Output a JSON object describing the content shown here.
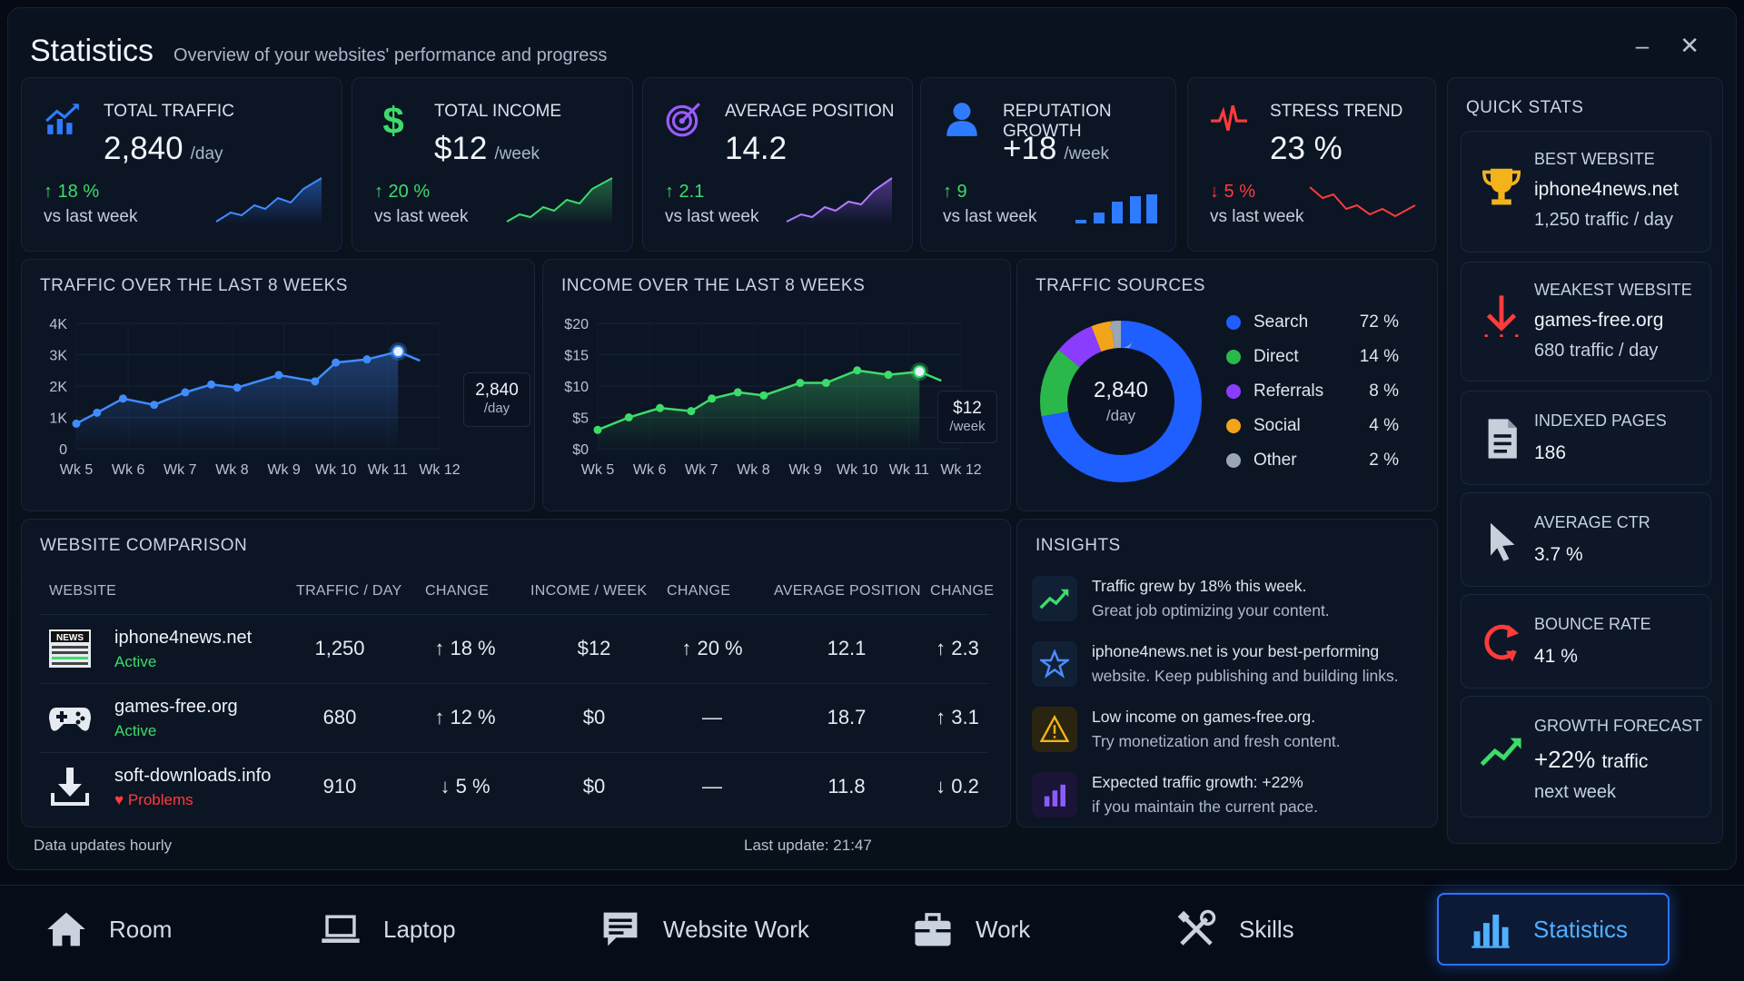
{
  "header": {
    "title": "Statistics",
    "subtitle": "Overview of your websites' performance and progress",
    "minimize": "–",
    "close": "✕"
  },
  "kpis": [
    {
      "label": "TOTAL TRAFFIC",
      "value": "2,840",
      "unit": "/day",
      "delta": "↑ 18 %",
      "trend": "up",
      "vs": "vs last week",
      "icon": "trending-chart-icon",
      "color": "#2f7bff"
    },
    {
      "label": "TOTAL INCOME",
      "value": "$12",
      "unit": "/week",
      "delta": "↑ 20 %",
      "trend": "up",
      "vs": "vs last week",
      "icon": "dollar-icon",
      "color": "#3ddc6a"
    },
    {
      "label": "AVERAGE POSITION",
      "value": "14.2",
      "unit": "",
      "delta": "↑ 2.1",
      "trend": "up",
      "vs": "vs last week",
      "icon": "target-icon",
      "color": "#9b5cff"
    },
    {
      "label": "REPUTATION GROWTH",
      "value": "+18",
      "unit": "/week",
      "delta": "↑ 9",
      "trend": "up",
      "vs": "vs last week",
      "icon": "user-icon",
      "color": "#2f7bff"
    },
    {
      "label": "STRESS TREND",
      "value": "23 %",
      "unit": "",
      "delta": "↓ 5 %",
      "trend": "down",
      "vs": "vs last week",
      "icon": "heartbeat-icon",
      "color": "#ff3b3b"
    }
  ],
  "traffic_chart": {
    "title": "TRAFFIC OVER THE LAST 8 WEEKS",
    "tooltip_value": "2,840",
    "tooltip_unit": "/day",
    "y_ticks": [
      "4K",
      "3K",
      "2K",
      "1K",
      "0"
    ],
    "x_ticks": [
      "Wk 5",
      "Wk 6",
      "Wk 7",
      "Wk 8",
      "Wk 9",
      "Wk 10",
      "Wk 11",
      "Wk 12"
    ]
  },
  "income_chart": {
    "title": "INCOME OVER THE LAST 8 WEEKS",
    "tooltip_value": "$12",
    "tooltip_unit": "/week",
    "y_ticks": [
      "$20",
      "$15",
      "$10",
      "$5",
      "$0"
    ],
    "x_ticks": [
      "Wk 5",
      "Wk 6",
      "Wk 7",
      "Wk 8",
      "Wk 9",
      "Wk 10",
      "Wk 11",
      "Wk 12"
    ]
  },
  "chart_data": [
    {
      "type": "line",
      "title": "TRAFFIC OVER THE LAST 8 WEEKS",
      "x": [
        5.0,
        5.4,
        5.9,
        6.5,
        7.1,
        7.6,
        8.1,
        8.9,
        9.6,
        10.0,
        10.6,
        11.2
      ],
      "values": [
        800,
        1150,
        1600,
        1400,
        1800,
        2050,
        1950,
        2350,
        2150,
        2750,
        2850,
        3100
      ],
      "ylim": [
        0,
        4000
      ],
      "color": "#3f8cff"
    },
    {
      "type": "line",
      "title": "INCOME OVER THE LAST 8 WEEKS",
      "x": [
        5.0,
        5.6,
        6.2,
        6.8,
        7.2,
        7.7,
        8.2,
        8.9,
        9.4,
        10.0,
        10.6,
        11.2
      ],
      "values": [
        3,
        5,
        6.5,
        6,
        8,
        9,
        8.5,
        10.5,
        10.5,
        12.5,
        11.8,
        12.3
      ],
      "ylim": [
        0,
        20
      ],
      "color": "#3ddc6a"
    },
    {
      "type": "pie",
      "title": "TRAFFIC SOURCES",
      "categories": [
        "Search",
        "Direct",
        "Referrals",
        "Social",
        "Other"
      ],
      "values": [
        72,
        14,
        8,
        4,
        2
      ],
      "colors": [
        "#1f5eff",
        "#2bb84a",
        "#8a3cff",
        "#f2a41b",
        "#9aa5b6"
      ]
    }
  ],
  "traffic_sources": {
    "title": "TRAFFIC SOURCES",
    "center_value": "2,840",
    "center_unit": "/day",
    "items": [
      {
        "name": "Search",
        "pct": "72 %",
        "color": "#1f5eff"
      },
      {
        "name": "Direct",
        "pct": "14 %",
        "color": "#2bb84a"
      },
      {
        "name": "Referrals",
        "pct": "8 %",
        "color": "#8a3cff"
      },
      {
        "name": "Social",
        "pct": "4 %",
        "color": "#f2a41b"
      },
      {
        "name": "Other",
        "pct": "2 %",
        "color": "#9aa5b6"
      }
    ]
  },
  "comparison": {
    "title": "WEBSITE COMPARISON",
    "columns": [
      "WEBSITE",
      "TRAFFIC / DAY",
      "CHANGE",
      "INCOME / WEEK",
      "CHANGE",
      "AVERAGE POSITION",
      "CHANGE"
    ],
    "rows": [
      {
        "site": "iphone4news.net",
        "status": "Active",
        "status_type": "ok",
        "traffic": "1,250",
        "t_change": "↑ 18 %",
        "t_trend": "up",
        "income": "$12",
        "i_change": "↑ 20 %",
        "i_trend": "up",
        "position": "12.1",
        "p_change": "↑ 2.3",
        "p_trend": "up",
        "icon": "newspaper-icon"
      },
      {
        "site": "games-free.org",
        "status": "Active",
        "status_type": "ok",
        "traffic": "680",
        "t_change": "↑ 12 %",
        "t_trend": "up",
        "income": "$0",
        "i_change": "—",
        "i_trend": "none",
        "position": "18.7",
        "p_change": "↑ 3.1",
        "p_trend": "up",
        "icon": "gamepad-icon"
      },
      {
        "site": "soft-downloads.info",
        "status": "♥ Problems",
        "status_type": "bad",
        "traffic": "910",
        "t_change": "↓ 5 %",
        "t_trend": "down",
        "income": "$0",
        "i_change": "—",
        "i_trend": "none",
        "position": "11.8",
        "p_change": "↓ 0.2",
        "p_trend": "down",
        "icon": "download-icon"
      }
    ]
  },
  "insights": {
    "title": "INSIGHTS",
    "items": [
      {
        "line1": "Traffic grew by 18% this week.",
        "line2": "Great job optimizing your content.",
        "icon": "trend-up-icon"
      },
      {
        "line1": "iphone4news.net is your best-performing",
        "line2": "website. Keep publishing and building links.",
        "icon": "star-icon"
      },
      {
        "line1": "Low income on games-free.org.",
        "line2": "Try monetization and fresh content.",
        "icon": "warning-icon"
      },
      {
        "line1": "Expected traffic growth: +22%",
        "line2": "if you maintain the current pace.",
        "icon": "bar-chart-icon"
      }
    ]
  },
  "quick_stats": {
    "title": "QUICK STATS",
    "best": {
      "label": "BEST WEBSITE",
      "value": "iphone4news.net",
      "sub": "1,250 traffic / day"
    },
    "weakest": {
      "label": "WEAKEST WEBSITE",
      "value": "games-free.org",
      "sub": "680 traffic / day"
    },
    "indexed": {
      "label": "INDEXED PAGES",
      "value": "186"
    },
    "ctr": {
      "label": "AVERAGE CTR",
      "value": "3.7 %"
    },
    "bounce": {
      "label": "BOUNCE RATE",
      "value": "41 %"
    },
    "forecast": {
      "label": "GROWTH FORECAST",
      "value": "+22%",
      "value_suffix": "traffic",
      "sub": "next week"
    }
  },
  "footer": {
    "left": "Data updates hourly",
    "last_update": "Last update: 21:47"
  },
  "nav": [
    {
      "label": "Room",
      "icon": "home-icon"
    },
    {
      "label": "Laptop",
      "icon": "laptop-icon"
    },
    {
      "label": "Website Work",
      "icon": "document-chat-icon"
    },
    {
      "label": "Work",
      "icon": "briefcase-icon"
    },
    {
      "label": "Skills",
      "icon": "tools-icon"
    },
    {
      "label": "Statistics",
      "icon": "statistics-icon",
      "active": true
    }
  ],
  "colors": {
    "up": "#3ddc6a",
    "down": "#ff3b3b",
    "accent": "#2f72ff"
  }
}
